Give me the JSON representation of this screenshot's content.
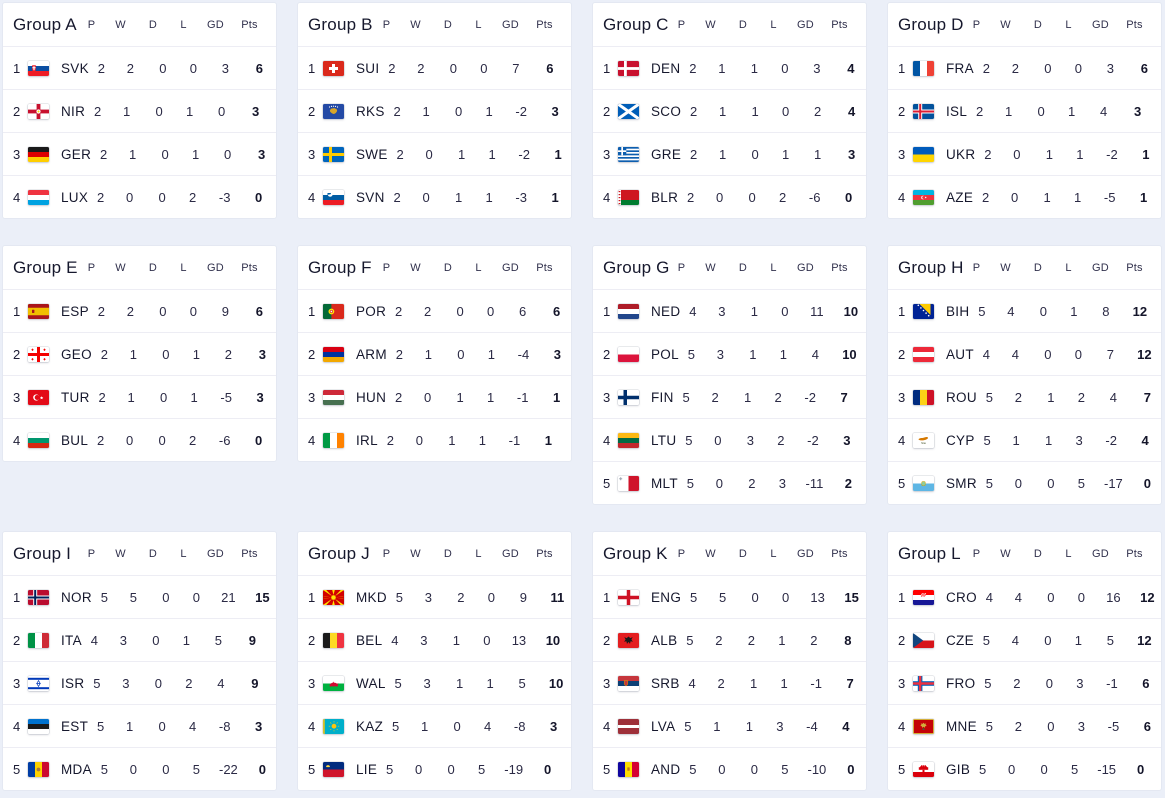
{
  "headers": [
    "P",
    "W",
    "D",
    "L",
    "GD",
    "Pts"
  ],
  "colors": {
    "page_background": "#ebeff8",
    "card_background": "#ffffff",
    "title_text": "#16182d",
    "stat_text": "#2b2a45"
  },
  "groups": [
    {
      "title": "Group A",
      "teams": [
        {
          "rank": "1",
          "code": "SVK",
          "flag": "svk",
          "p": "2",
          "w": "2",
          "d": "0",
          "l": "0",
          "gd": "3",
          "pts": "6"
        },
        {
          "rank": "2",
          "code": "NIR",
          "flag": "nir",
          "p": "2",
          "w": "1",
          "d": "0",
          "l": "1",
          "gd": "0",
          "pts": "3"
        },
        {
          "rank": "3",
          "code": "GER",
          "flag": "ger",
          "p": "2",
          "w": "1",
          "d": "0",
          "l": "1",
          "gd": "0",
          "pts": "3"
        },
        {
          "rank": "4",
          "code": "LUX",
          "flag": "lux",
          "p": "2",
          "w": "0",
          "d": "0",
          "l": "2",
          "gd": "-3",
          "pts": "0"
        }
      ]
    },
    {
      "title": "Group B",
      "teams": [
        {
          "rank": "1",
          "code": "SUI",
          "flag": "sui",
          "p": "2",
          "w": "2",
          "d": "0",
          "l": "0",
          "gd": "7",
          "pts": "6"
        },
        {
          "rank": "2",
          "code": "RKS",
          "flag": "rks",
          "p": "2",
          "w": "1",
          "d": "0",
          "l": "1",
          "gd": "-2",
          "pts": "3"
        },
        {
          "rank": "3",
          "code": "SWE",
          "flag": "swe",
          "p": "2",
          "w": "0",
          "d": "1",
          "l": "1",
          "gd": "-2",
          "pts": "1"
        },
        {
          "rank": "4",
          "code": "SVN",
          "flag": "svn",
          "p": "2",
          "w": "0",
          "d": "1",
          "l": "1",
          "gd": "-3",
          "pts": "1"
        }
      ]
    },
    {
      "title": "Group C",
      "teams": [
        {
          "rank": "1",
          "code": "DEN",
          "flag": "den",
          "p": "2",
          "w": "1",
          "d": "1",
          "l": "0",
          "gd": "3",
          "pts": "4"
        },
        {
          "rank": "2",
          "code": "SCO",
          "flag": "sco",
          "p": "2",
          "w": "1",
          "d": "1",
          "l": "0",
          "gd": "2",
          "pts": "4"
        },
        {
          "rank": "3",
          "code": "GRE",
          "flag": "gre",
          "p": "2",
          "w": "1",
          "d": "0",
          "l": "1",
          "gd": "1",
          "pts": "3"
        },
        {
          "rank": "4",
          "code": "BLR",
          "flag": "blr",
          "p": "2",
          "w": "0",
          "d": "0",
          "l": "2",
          "gd": "-6",
          "pts": "0"
        }
      ]
    },
    {
      "title": "Group D",
      "teams": [
        {
          "rank": "1",
          "code": "FRA",
          "flag": "fra",
          "p": "2",
          "w": "2",
          "d": "0",
          "l": "0",
          "gd": "3",
          "pts": "6"
        },
        {
          "rank": "2",
          "code": "ISL",
          "flag": "isl",
          "p": "2",
          "w": "1",
          "d": "0",
          "l": "1",
          "gd": "4",
          "pts": "3"
        },
        {
          "rank": "3",
          "code": "UKR",
          "flag": "ukr",
          "p": "2",
          "w": "0",
          "d": "1",
          "l": "1",
          "gd": "-2",
          "pts": "1"
        },
        {
          "rank": "4",
          "code": "AZE",
          "flag": "aze",
          "p": "2",
          "w": "0",
          "d": "1",
          "l": "1",
          "gd": "-5",
          "pts": "1"
        }
      ]
    },
    {
      "title": "Group E",
      "teams": [
        {
          "rank": "1",
          "code": "ESP",
          "flag": "esp",
          "p": "2",
          "w": "2",
          "d": "0",
          "l": "0",
          "gd": "9",
          "pts": "6"
        },
        {
          "rank": "2",
          "code": "GEO",
          "flag": "geo",
          "p": "2",
          "w": "1",
          "d": "0",
          "l": "1",
          "gd": "2",
          "pts": "3"
        },
        {
          "rank": "3",
          "code": "TUR",
          "flag": "tur",
          "p": "2",
          "w": "1",
          "d": "0",
          "l": "1",
          "gd": "-5",
          "pts": "3"
        },
        {
          "rank": "4",
          "code": "BUL",
          "flag": "bul",
          "p": "2",
          "w": "0",
          "d": "0",
          "l": "2",
          "gd": "-6",
          "pts": "0"
        }
      ]
    },
    {
      "title": "Group F",
      "teams": [
        {
          "rank": "1",
          "code": "POR",
          "flag": "por",
          "p": "2",
          "w": "2",
          "d": "0",
          "l": "0",
          "gd": "6",
          "pts": "6"
        },
        {
          "rank": "2",
          "code": "ARM",
          "flag": "arm",
          "p": "2",
          "w": "1",
          "d": "0",
          "l": "1",
          "gd": "-4",
          "pts": "3"
        },
        {
          "rank": "3",
          "code": "HUN",
          "flag": "hun",
          "p": "2",
          "w": "0",
          "d": "1",
          "l": "1",
          "gd": "-1",
          "pts": "1"
        },
        {
          "rank": "4",
          "code": "IRL",
          "flag": "irl",
          "p": "2",
          "w": "0",
          "d": "1",
          "l": "1",
          "gd": "-1",
          "pts": "1"
        }
      ]
    },
    {
      "title": "Group G",
      "teams": [
        {
          "rank": "1",
          "code": "NED",
          "flag": "ned",
          "p": "4",
          "w": "3",
          "d": "1",
          "l": "0",
          "gd": "11",
          "pts": "10"
        },
        {
          "rank": "2",
          "code": "POL",
          "flag": "pol",
          "p": "5",
          "w": "3",
          "d": "1",
          "l": "1",
          "gd": "4",
          "pts": "10"
        },
        {
          "rank": "3",
          "code": "FIN",
          "flag": "fin",
          "p": "5",
          "w": "2",
          "d": "1",
          "l": "2",
          "gd": "-2",
          "pts": "7"
        },
        {
          "rank": "4",
          "code": "LTU",
          "flag": "ltu",
          "p": "5",
          "w": "0",
          "d": "3",
          "l": "2",
          "gd": "-2",
          "pts": "3"
        },
        {
          "rank": "5",
          "code": "MLT",
          "flag": "mlt",
          "p": "5",
          "w": "0",
          "d": "2",
          "l": "3",
          "gd": "-11",
          "pts": "2"
        }
      ]
    },
    {
      "title": "Group H",
      "teams": [
        {
          "rank": "1",
          "code": "BIH",
          "flag": "bih",
          "p": "5",
          "w": "4",
          "d": "0",
          "l": "1",
          "gd": "8",
          "pts": "12"
        },
        {
          "rank": "2",
          "code": "AUT",
          "flag": "aut",
          "p": "4",
          "w": "4",
          "d": "0",
          "l": "0",
          "gd": "7",
          "pts": "12"
        },
        {
          "rank": "3",
          "code": "ROU",
          "flag": "rou",
          "p": "5",
          "w": "2",
          "d": "1",
          "l": "2",
          "gd": "4",
          "pts": "7"
        },
        {
          "rank": "4",
          "code": "CYP",
          "flag": "cyp",
          "p": "5",
          "w": "1",
          "d": "1",
          "l": "3",
          "gd": "-2",
          "pts": "4"
        },
        {
          "rank": "5",
          "code": "SMR",
          "flag": "smr",
          "p": "5",
          "w": "0",
          "d": "0",
          "l": "5",
          "gd": "-17",
          "pts": "0"
        }
      ]
    },
    {
      "title": "Group I",
      "teams": [
        {
          "rank": "1",
          "code": "NOR",
          "flag": "nor",
          "p": "5",
          "w": "5",
          "d": "0",
          "l": "0",
          "gd": "21",
          "pts": "15"
        },
        {
          "rank": "2",
          "code": "ITA",
          "flag": "ita",
          "p": "4",
          "w": "3",
          "d": "0",
          "l": "1",
          "gd": "5",
          "pts": "9"
        },
        {
          "rank": "3",
          "code": "ISR",
          "flag": "isr",
          "p": "5",
          "w": "3",
          "d": "0",
          "l": "2",
          "gd": "4",
          "pts": "9"
        },
        {
          "rank": "4",
          "code": "EST",
          "flag": "est",
          "p": "5",
          "w": "1",
          "d": "0",
          "l": "4",
          "gd": "-8",
          "pts": "3"
        },
        {
          "rank": "5",
          "code": "MDA",
          "flag": "mda",
          "p": "5",
          "w": "0",
          "d": "0",
          "l": "5",
          "gd": "-22",
          "pts": "0"
        }
      ]
    },
    {
      "title": "Group J",
      "teams": [
        {
          "rank": "1",
          "code": "MKD",
          "flag": "mkd",
          "p": "5",
          "w": "3",
          "d": "2",
          "l": "0",
          "gd": "9",
          "pts": "11"
        },
        {
          "rank": "2",
          "code": "BEL",
          "flag": "bel",
          "p": "4",
          "w": "3",
          "d": "1",
          "l": "0",
          "gd": "13",
          "pts": "10"
        },
        {
          "rank": "3",
          "code": "WAL",
          "flag": "wal",
          "p": "5",
          "w": "3",
          "d": "1",
          "l": "1",
          "gd": "5",
          "pts": "10"
        },
        {
          "rank": "4",
          "code": "KAZ",
          "flag": "kaz",
          "p": "5",
          "w": "1",
          "d": "0",
          "l": "4",
          "gd": "-8",
          "pts": "3"
        },
        {
          "rank": "5",
          "code": "LIE",
          "flag": "lie",
          "p": "5",
          "w": "0",
          "d": "0",
          "l": "5",
          "gd": "-19",
          "pts": "0"
        }
      ]
    },
    {
      "title": "Group K",
      "teams": [
        {
          "rank": "1",
          "code": "ENG",
          "flag": "eng",
          "p": "5",
          "w": "5",
          "d": "0",
          "l": "0",
          "gd": "13",
          "pts": "15"
        },
        {
          "rank": "2",
          "code": "ALB",
          "flag": "alb",
          "p": "5",
          "w": "2",
          "d": "2",
          "l": "1",
          "gd": "2",
          "pts": "8"
        },
        {
          "rank": "3",
          "code": "SRB",
          "flag": "srb",
          "p": "4",
          "w": "2",
          "d": "1",
          "l": "1",
          "gd": "-1",
          "pts": "7"
        },
        {
          "rank": "4",
          "code": "LVA",
          "flag": "lva",
          "p": "5",
          "w": "1",
          "d": "1",
          "l": "3",
          "gd": "-4",
          "pts": "4"
        },
        {
          "rank": "5",
          "code": "AND",
          "flag": "and",
          "p": "5",
          "w": "0",
          "d": "0",
          "l": "5",
          "gd": "-10",
          "pts": "0"
        }
      ]
    },
    {
      "title": "Group L",
      "teams": [
        {
          "rank": "1",
          "code": "CRO",
          "flag": "cro",
          "p": "4",
          "w": "4",
          "d": "0",
          "l": "0",
          "gd": "16",
          "pts": "12"
        },
        {
          "rank": "2",
          "code": "CZE",
          "flag": "cze",
          "p": "5",
          "w": "4",
          "d": "0",
          "l": "1",
          "gd": "5",
          "pts": "12"
        },
        {
          "rank": "3",
          "code": "FRO",
          "flag": "fro",
          "p": "5",
          "w": "2",
          "d": "0",
          "l": "3",
          "gd": "-1",
          "pts": "6"
        },
        {
          "rank": "4",
          "code": "MNE",
          "flag": "mne",
          "p": "5",
          "w": "2",
          "d": "0",
          "l": "3",
          "gd": "-5",
          "pts": "6"
        },
        {
          "rank": "5",
          "code": "GIB",
          "flag": "gib",
          "p": "5",
          "w": "0",
          "d": "0",
          "l": "5",
          "gd": "-15",
          "pts": "0"
        }
      ]
    }
  ]
}
